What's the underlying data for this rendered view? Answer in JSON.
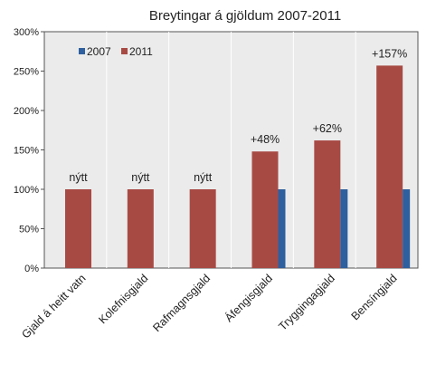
{
  "chart_data": {
    "type": "bar",
    "title": "Breytingar á gjöldum 2007-2011",
    "xlabel": "",
    "ylabel": "",
    "ylim": [
      0,
      300
    ],
    "yticks": [
      "0%",
      "50%",
      "100%",
      "150%",
      "200%",
      "250%",
      "300%"
    ],
    "categories": [
      "Gjald á heitt vatn",
      "Kolefnisgjald",
      "Rafmagnsgjald",
      "Áfengisgjald",
      "Tryggingagjald",
      "Bensíngjald"
    ],
    "series": [
      {
        "name": "2007",
        "color": "#2e5f9e",
        "values": [
          null,
          null,
          null,
          100,
          100,
          100
        ]
      },
      {
        "name": "2011",
        "color": "#a84a44",
        "values": [
          100,
          100,
          100,
          148,
          162,
          257
        ]
      }
    ],
    "data_labels": [
      "nýtt",
      "nýtt",
      "nýtt",
      "+48%",
      "+62%",
      "+157%"
    ],
    "grid": "vertical-category-separators",
    "legend_position": "top-left",
    "background": "#ebebeb"
  }
}
